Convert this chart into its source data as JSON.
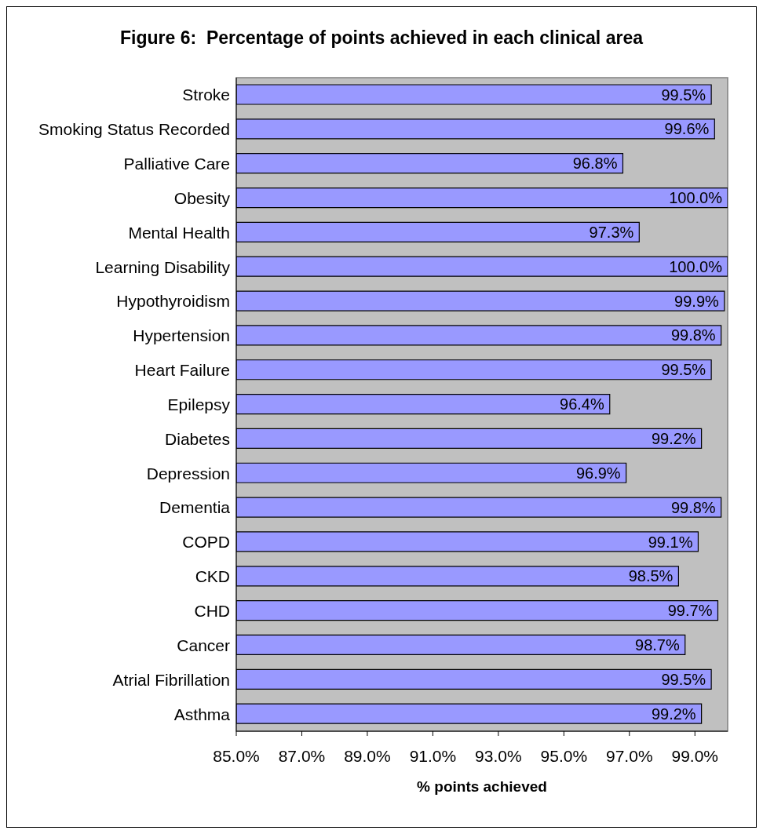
{
  "chart_data": {
    "type": "bar",
    "orientation": "horizontal",
    "title": "Figure 6:  Percentage of points achieved in each clinical area",
    "xlabel": "% points achieved",
    "categories": [
      "Stroke",
      "Smoking Status Recorded",
      "Palliative Care",
      "Obesity",
      "Mental Health",
      "Learning Disability",
      "Hypothyroidism",
      "Hypertension",
      "Heart Failure",
      "Epilepsy",
      "Diabetes",
      "Depression",
      "Dementia",
      "COPD",
      "CKD",
      "CHD",
      "Cancer",
      "Atrial Fibrillation",
      "Asthma"
    ],
    "values": [
      99.5,
      99.6,
      96.8,
      100.0,
      97.3,
      100.0,
      99.9,
      99.8,
      99.5,
      96.4,
      99.2,
      96.9,
      99.8,
      99.1,
      98.5,
      99.7,
      98.7,
      99.5,
      99.2
    ],
    "value_labels": [
      "99.5%",
      "99.6%",
      "96.8%",
      "100.0%",
      "97.3%",
      "100.0%",
      "99.9%",
      "99.8%",
      "99.5%",
      "96.4%",
      "99.2%",
      "96.9%",
      "99.8%",
      "99.1%",
      "98.5%",
      "99.7%",
      "98.7%",
      "99.5%",
      "99.2%"
    ],
    "color": "#9999ff",
    "xlim": [
      85,
      100
    ],
    "xticks": [
      {
        "value": 85,
        "label": "85.0%"
      },
      {
        "value": 87,
        "label": "87.0%"
      },
      {
        "value": 89,
        "label": "89.0%"
      },
      {
        "value": 91,
        "label": "91.0%"
      },
      {
        "value": 93,
        "label": "93.0%"
      },
      {
        "value": 95,
        "label": "95.0%"
      },
      {
        "value": 97,
        "label": "97.0%"
      },
      {
        "value": 99,
        "label": "99.0%"
      }
    ]
  }
}
